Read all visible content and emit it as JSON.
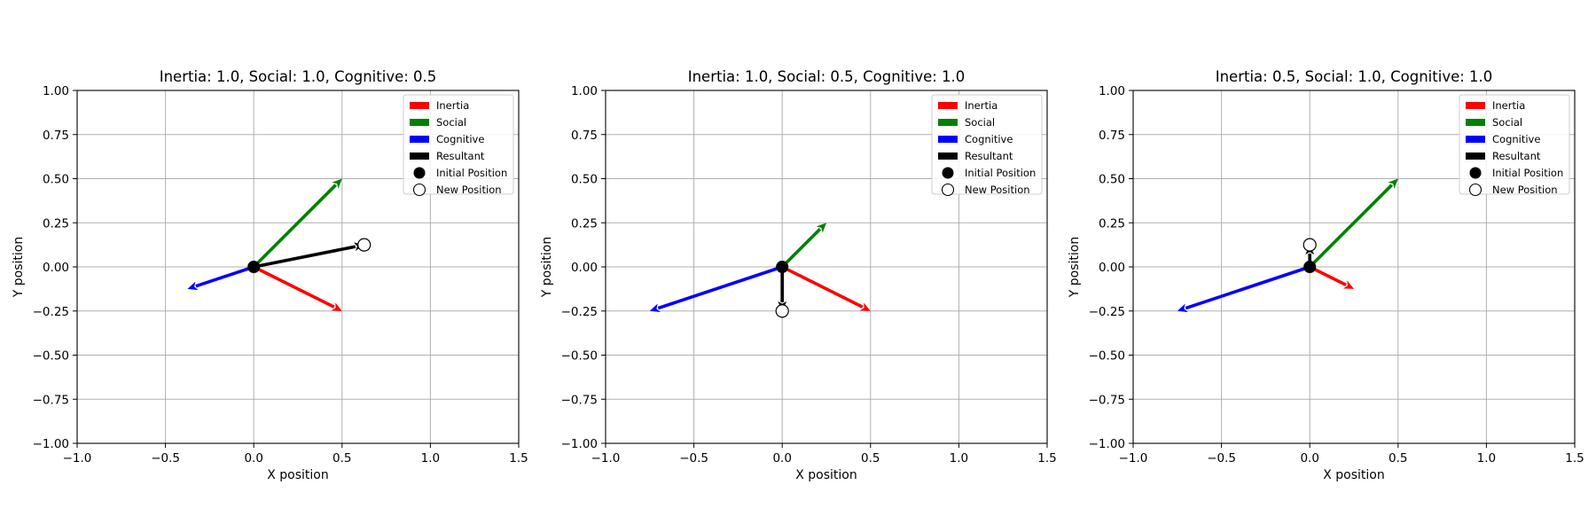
{
  "chart_data": [
    {
      "type": "vector",
      "title": "Inertia: 1.0, Social: 1.0, Cognitive: 0.5",
      "xlabel": "X position",
      "ylabel": "Y position",
      "xlim": [
        -1.0,
        1.5
      ],
      "ylim": [
        -1.0,
        1.0
      ],
      "xticks": [
        -1.0,
        -0.5,
        0.0,
        0.5,
        1.0,
        1.5
      ],
      "xtick_labels": [
        "−1.0",
        "−0.5",
        "0.0",
        "0.5",
        "1.0",
        "1.5"
      ],
      "yticks": [
        1.0,
        0.75,
        0.5,
        0.25,
        0.0,
        -0.25,
        -0.5,
        -0.75,
        -1.0
      ],
      "ytick_labels": [
        "1.00",
        "0.75",
        "0.50",
        "0.25",
        "0.00",
        "−0.25",
        "−0.50",
        "−0.75",
        "−1.00"
      ],
      "grid": true,
      "legend_position": "top-right",
      "origin": [
        0.0,
        0.0
      ],
      "vectors": [
        {
          "name": "Inertia",
          "color": "#ff0000",
          "dx": 0.5,
          "dy": -0.25
        },
        {
          "name": "Social",
          "color": "#008000",
          "dx": 0.5,
          "dy": 0.5
        },
        {
          "name": "Cognitive",
          "color": "#0000ff",
          "dx": -0.375,
          "dy": -0.125
        },
        {
          "name": "Resultant",
          "color": "#000000",
          "dx": 0.625,
          "dy": 0.125
        }
      ],
      "initial_position": {
        "name": "Initial Position",
        "x": 0.0,
        "y": 0.0
      },
      "new_position": {
        "name": "New Position",
        "x": 0.625,
        "y": 0.125
      }
    },
    {
      "type": "vector",
      "title": "Inertia: 1.0, Social: 0.5, Cognitive: 1.0",
      "xlabel": "X position",
      "ylabel": "Y position",
      "xlim": [
        -1.0,
        1.5
      ],
      "ylim": [
        -1.0,
        1.0
      ],
      "xticks": [
        -1.0,
        -0.5,
        0.0,
        0.5,
        1.0,
        1.5
      ],
      "xtick_labels": [
        "−1.0",
        "−0.5",
        "0.0",
        "0.5",
        "1.0",
        "1.5"
      ],
      "yticks": [
        1.0,
        0.75,
        0.5,
        0.25,
        0.0,
        -0.25,
        -0.5,
        -0.75,
        -1.0
      ],
      "ytick_labels": [
        "1.00",
        "0.75",
        "0.50",
        "0.25",
        "0.00",
        "−0.25",
        "−0.50",
        "−0.75",
        "−1.00"
      ],
      "grid": true,
      "legend_position": "top-right",
      "origin": [
        0.0,
        0.0
      ],
      "vectors": [
        {
          "name": "Inertia",
          "color": "#ff0000",
          "dx": 0.5,
          "dy": -0.25
        },
        {
          "name": "Social",
          "color": "#008000",
          "dx": 0.25,
          "dy": 0.25
        },
        {
          "name": "Cognitive",
          "color": "#0000ff",
          "dx": -0.75,
          "dy": -0.25
        },
        {
          "name": "Resultant",
          "color": "#000000",
          "dx": 0.0,
          "dy": -0.25
        }
      ],
      "initial_position": {
        "name": "Initial Position",
        "x": 0.0,
        "y": 0.0
      },
      "new_position": {
        "name": "New Position",
        "x": 0.0,
        "y": -0.25
      }
    },
    {
      "type": "vector",
      "title": "Inertia: 0.5, Social: 1.0, Cognitive: 1.0",
      "xlabel": "X position",
      "ylabel": "Y position",
      "xlim": [
        -1.0,
        1.5
      ],
      "ylim": [
        -1.0,
        1.0
      ],
      "xticks": [
        -1.0,
        -0.5,
        0.0,
        0.5,
        1.0,
        1.5
      ],
      "xtick_labels": [
        "−1.0",
        "−0.5",
        "0.0",
        "0.5",
        "1.0",
        "1.5"
      ],
      "yticks": [
        1.0,
        0.75,
        0.5,
        0.25,
        0.0,
        -0.25,
        -0.5,
        -0.75,
        -1.0
      ],
      "ytick_labels": [
        "1.00",
        "0.75",
        "0.50",
        "0.25",
        "0.00",
        "−0.25",
        "−0.50",
        "−0.75",
        "−1.00"
      ],
      "grid": true,
      "legend_position": "top-right",
      "origin": [
        0.0,
        0.0
      ],
      "vectors": [
        {
          "name": "Inertia",
          "color": "#ff0000",
          "dx": 0.25,
          "dy": -0.125
        },
        {
          "name": "Social",
          "color": "#008000",
          "dx": 0.5,
          "dy": 0.5
        },
        {
          "name": "Cognitive",
          "color": "#0000ff",
          "dx": -0.75,
          "dy": -0.25
        },
        {
          "name": "Resultant",
          "color": "#000000",
          "dx": 0.0,
          "dy": 0.125
        }
      ],
      "initial_position": {
        "name": "Initial Position",
        "x": 0.0,
        "y": 0.0
      },
      "new_position": {
        "name": "New Position",
        "x": 0.0,
        "y": 0.125
      }
    }
  ]
}
